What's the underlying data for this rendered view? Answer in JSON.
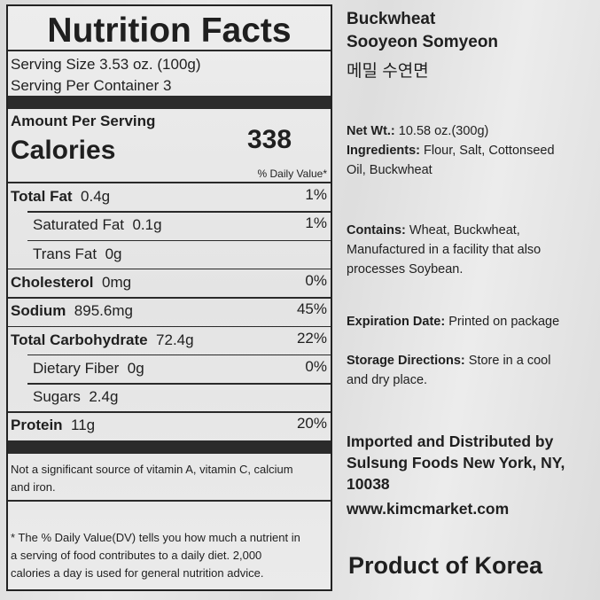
{
  "nutrition": {
    "title": "Nutrition Facts",
    "serving_size": "Serving Size 3.53 oz. (100g)",
    "servings_per_container": "Serving Per Container 3",
    "amount_per_serving": "Amount Per Serving",
    "calories_label": "Calories",
    "calories_value": "338",
    "daily_value_header": "% Daily Value*",
    "rows": [
      {
        "name": "Total Fat",
        "amount": "0.4g",
        "dv": "1%",
        "bold": true,
        "indent": false
      },
      {
        "name": "Saturated Fat",
        "amount": "0.1g",
        "dv": "1%",
        "bold": false,
        "indent": true
      },
      {
        "name": "Trans Fat",
        "amount": "0g",
        "dv": "",
        "bold": false,
        "indent": true
      },
      {
        "name": "Cholesterol",
        "amount": "0mg",
        "dv": "0%",
        "bold": true,
        "indent": false
      },
      {
        "name": "Sodium",
        "amount": "895.6mg",
        "dv": "45%",
        "bold": true,
        "indent": false
      },
      {
        "name": "Total Carbohydrate",
        "amount": "72.4g",
        "dv": "22%",
        "bold": true,
        "indent": false
      },
      {
        "name": "Dietary Fiber",
        "amount": "0g",
        "dv": "0%",
        "bold": false,
        "indent": true
      },
      {
        "name": "Sugars",
        "amount": "2.4g",
        "dv": "",
        "bold": false,
        "indent": true
      },
      {
        "name": "Protein",
        "amount": "11g",
        "dv": "20%",
        "bold": true,
        "indent": false
      }
    ],
    "vitamin_note": [
      "Not a significant source of vitamin A, vitamin C, calcium",
      "and iron."
    ],
    "footnote": [
      "* The % Daily Value(DV) tells you how much a nutrient in",
      "a serving of food contributes to a daily diet. 2,000",
      "calories a day is used for general nutrition advice."
    ]
  },
  "product": {
    "name_line1": "Buckwheat",
    "name_line2": "Sooyeon Somyeon",
    "name_korean": "메밀 수연면",
    "net_wt_label": "Net Wt.:",
    "net_wt_value": " 10.58 oz.(300g)",
    "ingredients_label": "Ingredients:",
    "ingredients_line1": " Flour, Salt, Cottonseed",
    "ingredients_line2": "Oil, Buckwheat",
    "contains_label": "Contains:",
    "contains_line1": " Wheat, Buckwheat,",
    "contains_line2": "Manufactured in a facility that also",
    "contains_line3": "processes Soybean.",
    "expiration_label": "Expiration Date:",
    "expiration_value": " Printed on package",
    "storage_label": "Storage Directions:",
    "storage_line1": " Store in a cool",
    "storage_line2": "and dry place.",
    "importer": [
      "Imported and Distributed by",
      "Sulsung Foods New York, NY,",
      "10038",
      "www.kimcmarket.com"
    ],
    "origin": "Product of Korea"
  }
}
